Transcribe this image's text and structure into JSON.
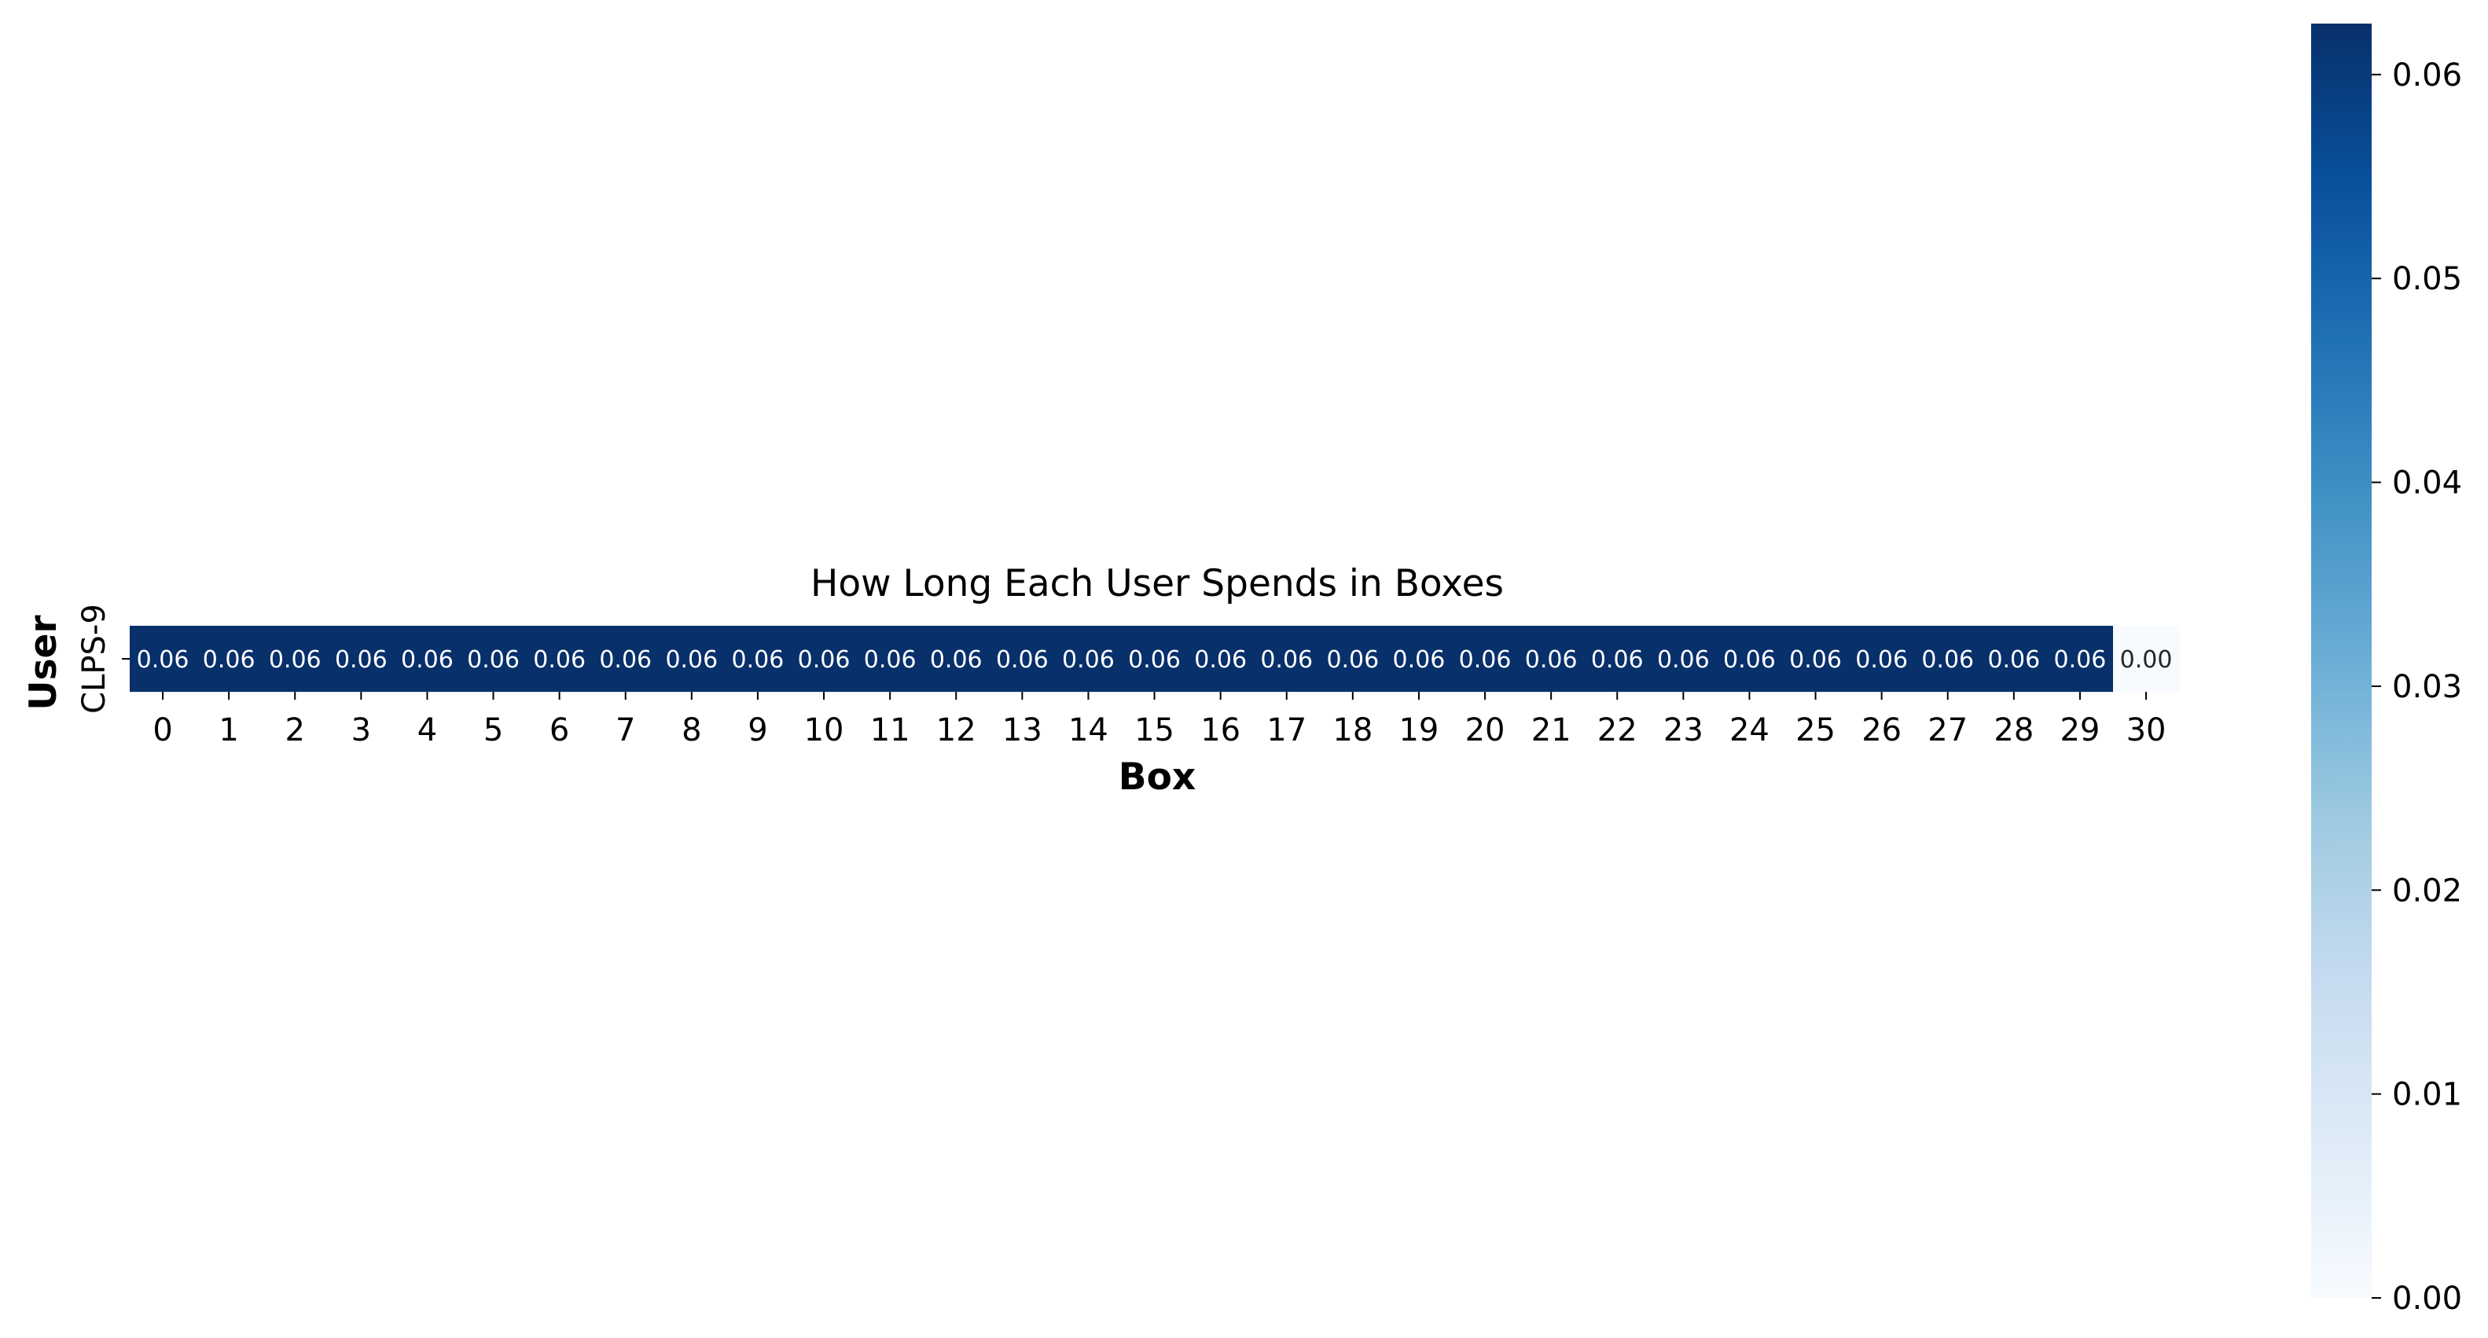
{
  "chart_data": {
    "type": "heatmap",
    "title": "How Long Each User Spends in Boxes",
    "xlabel": "Box",
    "ylabel": "User",
    "x_categories": [
      "0",
      "1",
      "2",
      "3",
      "4",
      "5",
      "6",
      "7",
      "8",
      "9",
      "10",
      "11",
      "12",
      "13",
      "14",
      "15",
      "16",
      "17",
      "18",
      "19",
      "20",
      "21",
      "22",
      "23",
      "24",
      "25",
      "26",
      "27",
      "28",
      "29",
      "30"
    ],
    "y_categories": [
      "CLPS-9"
    ],
    "values": [
      [
        0.0625,
        0.0625,
        0.0625,
        0.0625,
        0.0625,
        0.0625,
        0.0625,
        0.0625,
        0.0625,
        0.0625,
        0.0625,
        0.0625,
        0.0625,
        0.0625,
        0.0625,
        0.0625,
        0.0625,
        0.0625,
        0.0625,
        0.0625,
        0.0625,
        0.0625,
        0.0625,
        0.0625,
        0.0625,
        0.0625,
        0.0625,
        0.0625,
        0.0625,
        0.0625,
        0.0
      ]
    ],
    "cell_labels": [
      [
        "0.06",
        "0.06",
        "0.06",
        "0.06",
        "0.06",
        "0.06",
        "0.06",
        "0.06",
        "0.06",
        "0.06",
        "0.06",
        "0.06",
        "0.06",
        "0.06",
        "0.06",
        "0.06",
        "0.06",
        "0.06",
        "0.06",
        "0.06",
        "0.06",
        "0.06",
        "0.06",
        "0.06",
        "0.06",
        "0.06",
        "0.06",
        "0.06",
        "0.06",
        "0.06",
        "0.00"
      ]
    ],
    "colormap": "Blues",
    "color_low": "#f7fbff",
    "color_high": "#08306b",
    "colorbar": {
      "range": [
        0,
        0.0625
      ],
      "ticks": [
        0.0,
        0.01,
        0.02,
        0.03,
        0.04,
        0.05,
        0.06
      ],
      "tick_labels": [
        "0.00",
        "0.01",
        "0.02",
        "0.03",
        "0.04",
        "0.05",
        "0.06"
      ]
    },
    "grid": false,
    "legend": "none"
  }
}
